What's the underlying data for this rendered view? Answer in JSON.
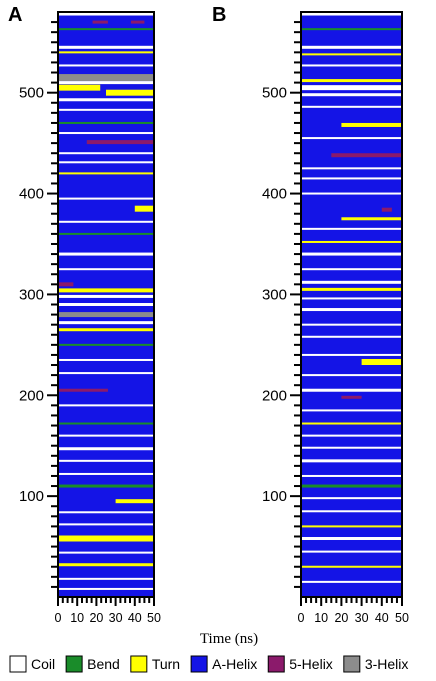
{
  "chart_data": {
    "type": "heatmap",
    "xlabel": "Time (ns)",
    "ylabel": "",
    "xlim": [
      0,
      50
    ],
    "ylim": [
      0,
      580
    ],
    "x_ticks": [
      "0",
      "10",
      "20",
      "30",
      "40",
      "50"
    ],
    "y_ticks": [
      "100",
      "200",
      "300",
      "400",
      "500"
    ],
    "y_tick_values": [
      100,
      200,
      300,
      400,
      500
    ],
    "legend_position": "bottom",
    "legend": [
      {
        "label": "Coil",
        "color": "#ffffff"
      },
      {
        "label": "Bend",
        "color": "#1a8c2a"
      },
      {
        "label": "Turn",
        "color": "#ffff00"
      },
      {
        "label": "A-Helix",
        "color": "#1414e6"
      },
      {
        "label": "5-Helix",
        "color": "#8b1a6b"
      },
      {
        "label": "3-Helix",
        "color": "#8c8c8c"
      }
    ],
    "panels": [
      {
        "label": "A",
        "background_state": "A-Helix",
        "bands": [
          {
            "residue": 578,
            "t0": 0,
            "t1": 50,
            "state": "Coil",
            "h": 3
          },
          {
            "residue": 570,
            "t0": 18,
            "t1": 26,
            "state": "5-Helix",
            "h": 3
          },
          {
            "residue": 570,
            "t0": 38,
            "t1": 45,
            "state": "5-Helix",
            "h": 3
          },
          {
            "residue": 563,
            "t0": 0,
            "t1": 50,
            "state": "Bend",
            "h": 2
          },
          {
            "residue": 545,
            "t0": 0,
            "t1": 50,
            "state": "Coil",
            "h": 3
          },
          {
            "residue": 540,
            "t0": 0,
            "t1": 50,
            "state": "Turn",
            "h": 2
          },
          {
            "residue": 527,
            "t0": 0,
            "t1": 50,
            "state": "Coil",
            "h": 2
          },
          {
            "residue": 515,
            "t0": 0,
            "t1": 50,
            "state": "3-Helix",
            "h": 7
          },
          {
            "residue": 510,
            "t0": 0,
            "t1": 50,
            "state": "Coil",
            "h": 3
          },
          {
            "residue": 505,
            "t0": 0,
            "t1": 22,
            "state": "Turn",
            "h": 6
          },
          {
            "residue": 500,
            "t0": 25,
            "t1": 50,
            "state": "Turn",
            "h": 6
          },
          {
            "residue": 493,
            "t0": 0,
            "t1": 50,
            "state": "Coil",
            "h": 3
          },
          {
            "residue": 483,
            "t0": 0,
            "t1": 50,
            "state": "Coil",
            "h": 2
          },
          {
            "residue": 470,
            "t0": 0,
            "t1": 50,
            "state": "Bend",
            "h": 2
          },
          {
            "residue": 460,
            "t0": 0,
            "t1": 50,
            "state": "Coil",
            "h": 2
          },
          {
            "residue": 451,
            "t0": 15,
            "t1": 50,
            "state": "5-Helix",
            "h": 4
          },
          {
            "residue": 440,
            "t0": 0,
            "t1": 50,
            "state": "Coil",
            "h": 2
          },
          {
            "residue": 431,
            "t0": 0,
            "t1": 50,
            "state": "Coil",
            "h": 2
          },
          {
            "residue": 420,
            "t0": 0,
            "t1": 50,
            "state": "Turn",
            "h": 2
          },
          {
            "residue": 395,
            "t0": 0,
            "t1": 50,
            "state": "Coil",
            "h": 2
          },
          {
            "residue": 385,
            "t0": 40,
            "t1": 50,
            "state": "Turn",
            "h": 6
          },
          {
            "residue": 372,
            "t0": 0,
            "t1": 50,
            "state": "Coil",
            "h": 2
          },
          {
            "residue": 360,
            "t0": 0,
            "t1": 50,
            "state": "Bend",
            "h": 2
          },
          {
            "residue": 340,
            "t0": 0,
            "t1": 50,
            "state": "Coil",
            "h": 3
          },
          {
            "residue": 325,
            "t0": 0,
            "t1": 50,
            "state": "Coil",
            "h": 2
          },
          {
            "residue": 310,
            "t0": 0,
            "t1": 8,
            "state": "5-Helix",
            "h": 4
          },
          {
            "residue": 304,
            "t0": 0,
            "t1": 50,
            "state": "Turn",
            "h": 4
          },
          {
            "residue": 298,
            "t0": 0,
            "t1": 50,
            "state": "Coil",
            "h": 3
          },
          {
            "residue": 290,
            "t0": 0,
            "t1": 50,
            "state": "Coil",
            "h": 3
          },
          {
            "residue": 280,
            "t0": 0,
            "t1": 50,
            "state": "3-Helix",
            "h": 5
          },
          {
            "residue": 272,
            "t0": 0,
            "t1": 50,
            "state": "Coil",
            "h": 3
          },
          {
            "residue": 265,
            "t0": 0,
            "t1": 50,
            "state": "Turn",
            "h": 3
          },
          {
            "residue": 250,
            "t0": 0,
            "t1": 50,
            "state": "Bend",
            "h": 2
          },
          {
            "residue": 235,
            "t0": 0,
            "t1": 50,
            "state": "Coil",
            "h": 2
          },
          {
            "residue": 222,
            "t0": 0,
            "t1": 50,
            "state": "Coil",
            "h": 2
          },
          {
            "residue": 205,
            "t0": 0,
            "t1": 26,
            "state": "5-Helix",
            "h": 3
          },
          {
            "residue": 190,
            "t0": 0,
            "t1": 50,
            "state": "Coil",
            "h": 2
          },
          {
            "residue": 172,
            "t0": 0,
            "t1": 50,
            "state": "Bend",
            "h": 2
          },
          {
            "residue": 160,
            "t0": 0,
            "t1": 50,
            "state": "Coil",
            "h": 2
          },
          {
            "residue": 147,
            "t0": 0,
            "t1": 50,
            "state": "Coil",
            "h": 3
          },
          {
            "residue": 135,
            "t0": 0,
            "t1": 50,
            "state": "Coil",
            "h": 2
          },
          {
            "residue": 122,
            "t0": 0,
            "t1": 50,
            "state": "Coil",
            "h": 2
          },
          {
            "residue": 110,
            "t0": 0,
            "t1": 50,
            "state": "Bend",
            "h": 3
          },
          {
            "residue": 95,
            "t0": 30,
            "t1": 50,
            "state": "Turn",
            "h": 4
          },
          {
            "residue": 84,
            "t0": 0,
            "t1": 50,
            "state": "Coil",
            "h": 2
          },
          {
            "residue": 72,
            "t0": 0,
            "t1": 50,
            "state": "Coil",
            "h": 2
          },
          {
            "residue": 58,
            "t0": 0,
            "t1": 50,
            "state": "Turn",
            "h": 6
          },
          {
            "residue": 44,
            "t0": 0,
            "t1": 50,
            "state": "Coil",
            "h": 2
          },
          {
            "residue": 32,
            "t0": 0,
            "t1": 50,
            "state": "Turn",
            "h": 3
          },
          {
            "residue": 18,
            "t0": 0,
            "t1": 50,
            "state": "Coil",
            "h": 2
          },
          {
            "residue": 8,
            "t0": 0,
            "t1": 50,
            "state": "Coil",
            "h": 2
          }
        ]
      },
      {
        "label": "B",
        "background_state": "A-Helix",
        "bands": [
          {
            "residue": 578,
            "t0": 0,
            "t1": 50,
            "state": "Coil",
            "h": 3
          },
          {
            "residue": 563,
            "t0": 0,
            "t1": 50,
            "state": "Bend",
            "h": 2
          },
          {
            "residue": 545,
            "t0": 0,
            "t1": 50,
            "state": "Coil",
            "h": 3
          },
          {
            "residue": 538,
            "t0": 0,
            "t1": 50,
            "state": "Turn",
            "h": 2
          },
          {
            "residue": 527,
            "t0": 0,
            "t1": 50,
            "state": "Coil",
            "h": 2
          },
          {
            "residue": 512,
            "t0": 0,
            "t1": 50,
            "state": "Turn",
            "h": 3
          },
          {
            "residue": 505,
            "t0": 0,
            "t1": 50,
            "state": "Coil",
            "h": 5
          },
          {
            "residue": 498,
            "t0": 0,
            "t1": 50,
            "state": "Coil",
            "h": 3
          },
          {
            "residue": 486,
            "t0": 0,
            "t1": 50,
            "state": "Coil",
            "h": 2
          },
          {
            "residue": 468,
            "t0": 20,
            "t1": 50,
            "state": "Turn",
            "h": 4
          },
          {
            "residue": 455,
            "t0": 0,
            "t1": 50,
            "state": "Coil",
            "h": 2
          },
          {
            "residue": 438,
            "t0": 15,
            "t1": 50,
            "state": "5-Helix",
            "h": 4
          },
          {
            "residue": 425,
            "t0": 0,
            "t1": 50,
            "state": "Coil",
            "h": 2
          },
          {
            "residue": 415,
            "t0": 0,
            "t1": 50,
            "state": "Coil",
            "h": 2
          },
          {
            "residue": 400,
            "t0": 0,
            "t1": 50,
            "state": "Coil",
            "h": 2
          },
          {
            "residue": 384,
            "t0": 40,
            "t1": 45,
            "state": "5-Helix",
            "h": 4
          },
          {
            "residue": 375,
            "t0": 20,
            "t1": 50,
            "state": "Turn",
            "h": 3
          },
          {
            "residue": 365,
            "t0": 0,
            "t1": 50,
            "state": "Coil",
            "h": 2
          },
          {
            "residue": 352,
            "t0": 0,
            "t1": 50,
            "state": "Turn",
            "h": 2
          },
          {
            "residue": 340,
            "t0": 0,
            "t1": 50,
            "state": "Coil",
            "h": 3
          },
          {
            "residue": 325,
            "t0": 0,
            "t1": 50,
            "state": "Coil",
            "h": 2
          },
          {
            "residue": 312,
            "t0": 0,
            "t1": 50,
            "state": "Coil",
            "h": 3
          },
          {
            "residue": 305,
            "t0": 0,
            "t1": 50,
            "state": "Turn",
            "h": 3
          },
          {
            "residue": 296,
            "t0": 0,
            "t1": 50,
            "state": "Coil",
            "h": 2
          },
          {
            "residue": 285,
            "t0": 0,
            "t1": 50,
            "state": "Coil",
            "h": 3
          },
          {
            "residue": 270,
            "t0": 0,
            "t1": 50,
            "state": "Coil",
            "h": 2
          },
          {
            "residue": 258,
            "t0": 0,
            "t1": 50,
            "state": "Coil",
            "h": 2
          },
          {
            "residue": 240,
            "t0": 0,
            "t1": 50,
            "state": "Coil",
            "h": 2
          },
          {
            "residue": 233,
            "t0": 30,
            "t1": 50,
            "state": "Turn",
            "h": 6
          },
          {
            "residue": 220,
            "t0": 0,
            "t1": 50,
            "state": "Coil",
            "h": 2
          },
          {
            "residue": 205,
            "t0": 0,
            "t1": 50,
            "state": "Coil",
            "h": 3
          },
          {
            "residue": 198,
            "t0": 20,
            "t1": 30,
            "state": "5-Helix",
            "h": 3
          },
          {
            "residue": 185,
            "t0": 0,
            "t1": 50,
            "state": "Coil",
            "h": 2
          },
          {
            "residue": 172,
            "t0": 0,
            "t1": 50,
            "state": "Turn",
            "h": 2
          },
          {
            "residue": 160,
            "t0": 0,
            "t1": 50,
            "state": "Coil",
            "h": 2
          },
          {
            "residue": 148,
            "t0": 0,
            "t1": 50,
            "state": "Coil",
            "h": 2
          },
          {
            "residue": 135,
            "t0": 0,
            "t1": 50,
            "state": "Coil",
            "h": 3
          },
          {
            "residue": 120,
            "t0": 0,
            "t1": 50,
            "state": "Coil",
            "h": 2
          },
          {
            "residue": 110,
            "t0": 0,
            "t1": 50,
            "state": "Bend",
            "h": 3
          },
          {
            "residue": 98,
            "t0": 0,
            "t1": 50,
            "state": "Coil",
            "h": 2
          },
          {
            "residue": 85,
            "t0": 0,
            "t1": 50,
            "state": "Coil",
            "h": 2
          },
          {
            "residue": 70,
            "t0": 0,
            "t1": 50,
            "state": "Turn",
            "h": 2
          },
          {
            "residue": 58,
            "t0": 0,
            "t1": 50,
            "state": "Coil",
            "h": 3
          },
          {
            "residue": 45,
            "t0": 0,
            "t1": 50,
            "state": "Coil",
            "h": 2
          },
          {
            "residue": 30,
            "t0": 0,
            "t1": 50,
            "state": "Turn",
            "h": 2
          },
          {
            "residue": 15,
            "t0": 0,
            "t1": 50,
            "state": "Coil",
            "h": 2
          }
        ]
      }
    ]
  }
}
